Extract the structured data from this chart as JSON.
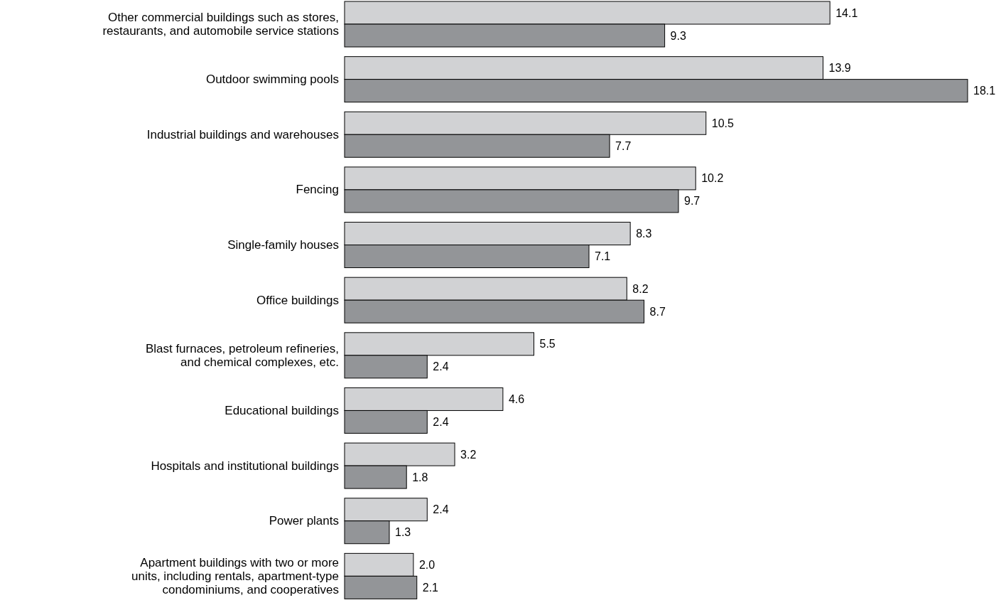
{
  "chart_data": {
    "type": "bar",
    "orientation": "horizontal",
    "categories": [
      "Other commercial buildings such as stores, restaurants, and automobile service stations",
      "Outdoor swimming pools",
      "Industrial buildings and warehouses",
      "Fencing",
      "Single-family houses",
      "Office buildings",
      "Blast furnaces, petroleum refineries, and chemical complexes, etc.",
      "Educational buildings",
      "Hospitals and institutional buildings",
      "Power plants",
      "Apartment buildings with two or more units, including rentals, apartment-type condominiums, and cooperatives"
    ],
    "series": [
      {
        "color": "#d1d2d4",
        "values": [
          14.1,
          13.9,
          10.5,
          10.2,
          8.3,
          8.2,
          5.5,
          4.6,
          3.2,
          2.4,
          2.0
        ],
        "value_labels": [
          "14.1",
          "13.9",
          "10.5",
          "10.2",
          "8.3",
          "8.2",
          "5.5",
          "4.6",
          "3.2",
          "2.4",
          "2.0"
        ]
      },
      {
        "color": "#939598",
        "values": [
          9.3,
          18.1,
          7.7,
          9.7,
          7.1,
          8.7,
          2.4,
          2.4,
          1.8,
          1.3,
          2.1
        ],
        "value_labels": [
          "9.3",
          "18.1",
          "7.7",
          "9.7",
          "7.1",
          "8.7",
          "2.4",
          "2.4",
          "1.8",
          "1.3",
          "2.1"
        ]
      }
    ]
  }
}
